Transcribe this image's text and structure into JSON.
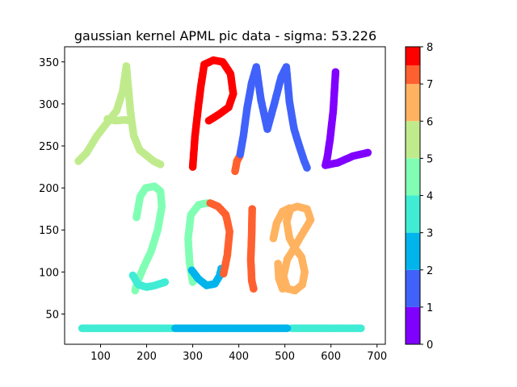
{
  "chart_data": {
    "type": "scatter",
    "title": "gaussian kernel APML pic data - sigma: 53.226",
    "xlabel": "",
    "ylabel": "",
    "xlim": [
      22,
      718
    ],
    "ylim": [
      14,
      368
    ],
    "xticks": [
      100,
      200,
      300,
      400,
      500,
      600,
      700
    ],
    "yticks": [
      50,
      100,
      150,
      200,
      250,
      300,
      350
    ],
    "grid": false,
    "colorbar": {
      "min": 0,
      "max": 8,
      "ticks": [
        0,
        1,
        2,
        3,
        4,
        5,
        6,
        7,
        8
      ],
      "levels": [
        {
          "from": 0,
          "to": 1,
          "color": "#8000ff"
        },
        {
          "from": 1,
          "to": 2,
          "color": "#4062fa"
        },
        {
          "from": 2,
          "to": 3,
          "color": "#00b5eb"
        },
        {
          "from": 3,
          "to": 4,
          "color": "#40ecd4"
        },
        {
          "from": 4,
          "to": 5,
          "color": "#80ffb4"
        },
        {
          "from": 5,
          "to": 6,
          "color": "#c0eb8d"
        },
        {
          "from": 6,
          "to": 7,
          "color": "#ffb360"
        },
        {
          "from": 7,
          "to": 8,
          "color": "#ff6030"
        },
        {
          "from": 8,
          "to": 8,
          "color": "#ff0000"
        }
      ]
    },
    "clusters": [
      {
        "label": 5,
        "color": "#c0eb8d",
        "strokes": [
          [
            [
              52,
              232
            ],
            [
              70,
              242
            ],
            [
              92,
              262
            ],
            [
              112,
              276
            ],
            [
              135,
              292
            ],
            [
              148,
              315
            ],
            [
              156,
              345
            ]
          ],
          [
            [
              156,
              345
            ],
            [
              160,
              320
            ],
            [
              165,
              290
            ],
            [
              172,
              262
            ],
            [
              185,
              245
            ],
            [
              215,
              232
            ],
            [
              230,
              228
            ]
          ],
          [
            [
              115,
              282
            ],
            [
              132,
              280
            ],
            [
              152,
              281
            ],
            [
              165,
              280
            ]
          ]
        ]
      },
      {
        "label": 8,
        "color": "#ff0000",
        "strokes": [
          [
            [
              300,
              225
            ],
            [
              305,
              262
            ],
            [
              312,
              296
            ],
            [
              318,
              322
            ],
            [
              325,
              347
            ],
            [
              345,
              352
            ],
            [
              365,
              350
            ],
            [
              382,
              336
            ],
            [
              388,
              312
            ],
            [
              378,
              296
            ],
            [
              358,
              288
            ],
            [
              335,
              280
            ]
          ]
        ]
      },
      {
        "label": 7,
        "color": "#ff6030",
        "strokes": [
          [
            [
              392,
              220
            ],
            [
              396,
              232
            ],
            [
              402,
              238
            ]
          ]
        ]
      },
      {
        "label": 1,
        "color": "#4062fa",
        "strokes": [
          [
            [
              403,
              240
            ],
            [
              410,
              262
            ],
            [
              418,
              295
            ],
            [
              428,
              325
            ],
            [
              438,
              344
            ],
            [
              448,
              305
            ],
            [
              462,
              270
            ],
            [
              478,
              302
            ],
            [
              492,
              332
            ],
            [
              503,
              344
            ],
            [
              510,
              302
            ],
            [
              520,
              270
            ],
            [
              530,
              252
            ],
            [
              542,
              232
            ],
            [
              548,
              224
            ]
          ]
        ]
      },
      {
        "label": 0,
        "color": "#8000ff",
        "strokes": [
          [
            [
              610,
              338
            ],
            [
              605,
              292
            ],
            [
              598,
              258
            ],
            [
              592,
              236
            ],
            [
              588,
              227
            ],
            [
              615,
              230
            ],
            [
              648,
              238
            ],
            [
              680,
              242
            ]
          ]
        ]
      },
      {
        "label": 4,
        "color": "#80ffb4",
        "strokes": [
          [
            [
              178,
              165
            ],
            [
              186,
              190
            ],
            [
              198,
              200
            ],
            [
              217,
              202
            ],
            [
              230,
              196
            ],
            [
              233,
              178
            ],
            [
              224,
              150
            ],
            [
              210,
              125
            ],
            [
              193,
              105
            ],
            [
              180,
              88
            ],
            [
              175,
              78
            ]
          ],
          [
            [
              300,
              88
            ],
            [
              293,
              112
            ],
            [
              290,
              140
            ],
            [
              296,
              168
            ],
            [
              313,
              180
            ],
            [
              332,
              182
            ]
          ]
        ]
      },
      {
        "label": 3,
        "color": "#40ecd4",
        "strokes": [
          [
            [
              170,
              96
            ],
            [
              182,
              85
            ],
            [
              200,
              82
            ],
            [
              218,
              84
            ],
            [
              240,
              88
            ]
          ],
          [
            [
              60,
              33
            ],
            [
              100,
              33
            ],
            [
              140,
              33
            ],
            [
              180,
              33
            ],
            [
              220,
              33
            ],
            [
              255,
              33
            ]
          ],
          [
            [
              515,
              33
            ],
            [
              560,
              33
            ],
            [
              610,
              33
            ],
            [
              665,
              33
            ]
          ]
        ]
      },
      {
        "label": 2,
        "color": "#00b5eb",
        "strokes": [
          [
            [
              298,
              102
            ],
            [
              312,
              92
            ],
            [
              330,
              84
            ],
            [
              348,
              86
            ],
            [
              358,
              95
            ],
            [
              362,
              104
            ]
          ],
          [
            [
              262,
              33
            ],
            [
              300,
              33
            ],
            [
              340,
              33
            ],
            [
              380,
              33
            ],
            [
              420,
              33
            ],
            [
              460,
              33
            ],
            [
              505,
              33
            ]
          ]
        ]
      },
      {
        "label": 7,
        "color": "#ff6030",
        "strokes": [
          [
            [
              338,
              182
            ],
            [
              355,
              178
            ],
            [
              372,
              168
            ],
            [
              380,
              148
            ],
            [
              375,
              120
            ],
            [
              367,
              98
            ]
          ],
          [
            [
              429,
              175
            ],
            [
              428,
              145
            ],
            [
              426,
              115
            ],
            [
              428,
              90
            ],
            [
              432,
              80
            ]
          ]
        ]
      },
      {
        "label": 6,
        "color": "#ffb360",
        "strokes": [
          [
            [
              543,
              150
            ],
            [
              556,
              162
            ],
            [
              548,
              175
            ],
            [
              527,
              178
            ],
            [
              512,
              175
            ],
            [
              504,
              160
            ],
            [
              510,
              140
            ],
            [
              522,
              128
            ],
            [
              536,
              118
            ],
            [
              543,
              100
            ],
            [
              538,
              85
            ],
            [
              522,
              78
            ],
            [
              505,
              80
            ],
            [
              497,
              95
            ],
            [
              505,
              115
            ],
            [
              520,
              128
            ],
            [
              532,
              140
            ],
            [
              543,
              150
            ]
          ],
          [
            [
              475,
              140
            ],
            [
              482,
              158
            ],
            [
              495,
              172
            ],
            [
              510,
              176
            ]
          ],
          [
            [
              485,
              110
            ],
            [
              487,
              92
            ],
            [
              495,
              80
            ]
          ]
        ]
      }
    ]
  }
}
